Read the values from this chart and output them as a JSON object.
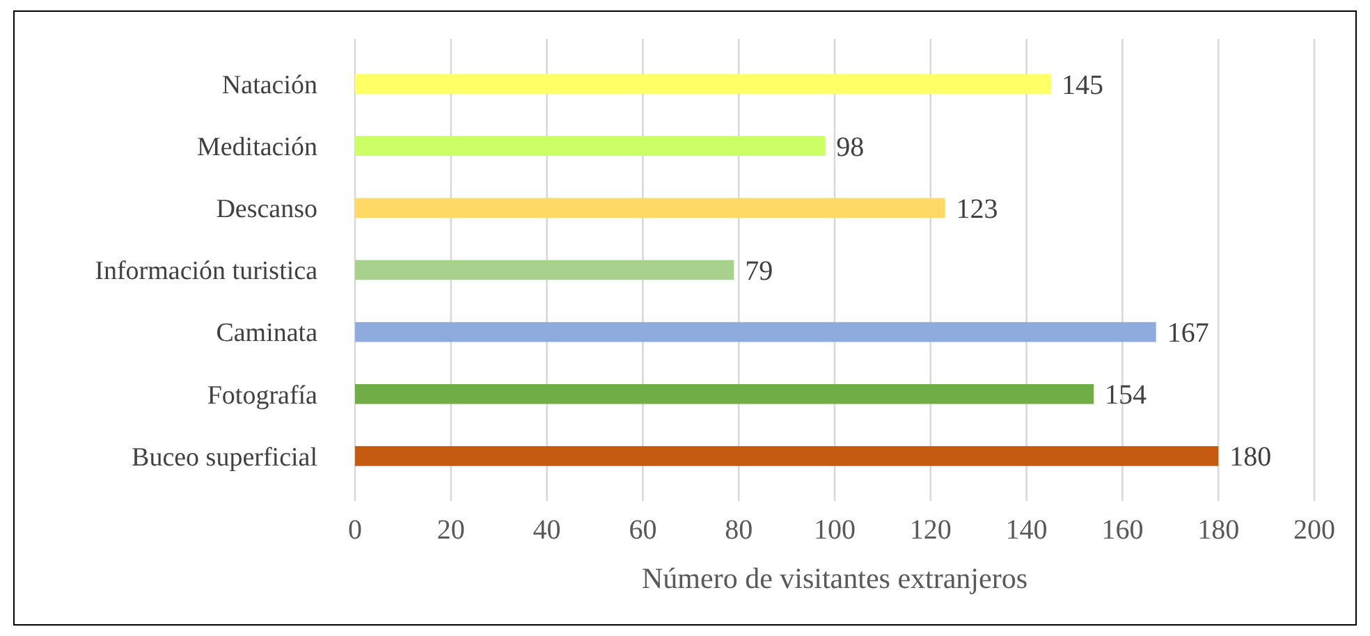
{
  "chart_data": {
    "type": "bar",
    "orientation": "horizontal",
    "xlabel": "Número de visitantes extranjeros",
    "categories": [
      "Natación",
      "Meditación",
      "Descanso",
      "Información turistica",
      "Caminata",
      "Fotografía",
      "Buceo superficial"
    ],
    "values": [
      145,
      98,
      123,
      79,
      167,
      154,
      180
    ],
    "colors": [
      "#ffff66",
      "#ccff66",
      "#ffd966",
      "#a9d18e",
      "#8faadc",
      "#70ad47",
      "#c55a11"
    ],
    "xlim": [
      0,
      200
    ],
    "xticks": [
      0,
      20,
      40,
      60,
      80,
      100,
      120,
      140,
      160,
      180,
      200
    ],
    "grid": "x",
    "data_labels": true
  }
}
